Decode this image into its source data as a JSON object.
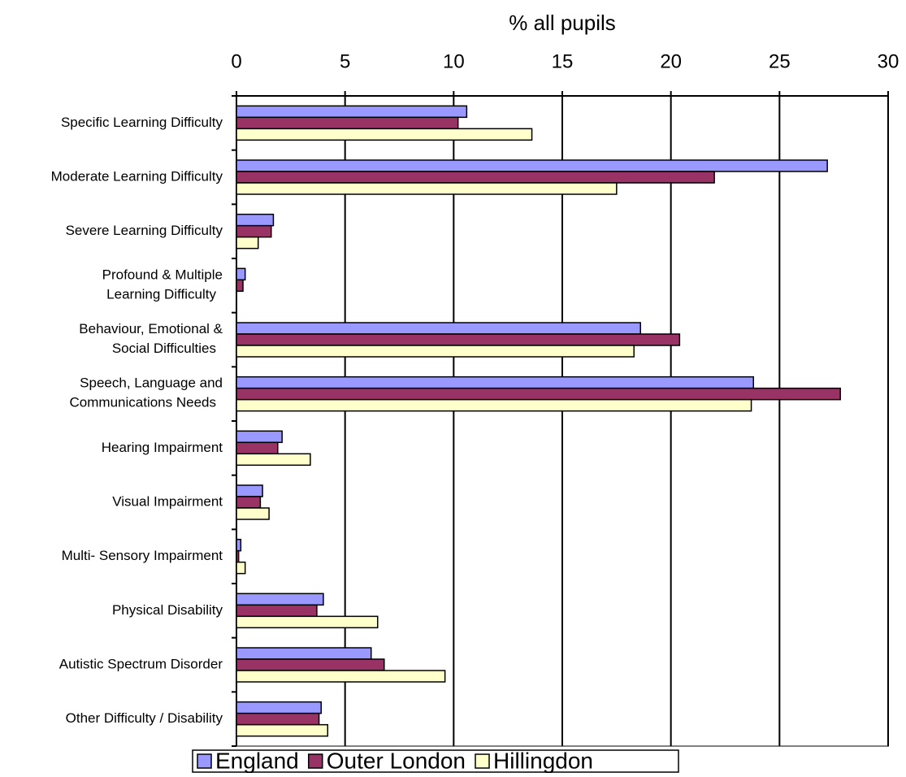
{
  "chart_data": {
    "type": "bar",
    "orientation": "horizontal",
    "x_label": "% all pupils",
    "categories": [
      "Specific Learning Difficulty",
      "Moderate Learning Difficulty",
      "Severe Learning Difficulty",
      "Profound & Multiple\nLearning Difficulty",
      "Behaviour, Emotional &\nSocial Difficulties",
      "Speech, Language and\nCommunications Needs",
      "Hearing Impairment",
      "Visual Impairment",
      "Multi- Sensory Impairment",
      "Physical Disability",
      "Autistic Spectrum Disorder",
      "Other Difficulty / Disability"
    ],
    "series": [
      {
        "name": "England",
        "color": "#9999ff",
        "values": [
          10.6,
          27.2,
          1.7,
          0.4,
          18.6,
          23.8,
          2.1,
          1.2,
          0.2,
          4.0,
          6.2,
          3.9
        ]
      },
      {
        "name": "Outer London",
        "color": "#993366",
        "values": [
          10.2,
          22.0,
          1.6,
          0.3,
          20.4,
          27.8,
          1.9,
          1.1,
          0.1,
          3.7,
          6.8,
          3.8
        ]
      },
      {
        "name": "Hillingdon",
        "color": "#ffffcc",
        "values": [
          13.6,
          17.5,
          1.0,
          0,
          18.3,
          23.7,
          3.4,
          1.5,
          0.4,
          6.5,
          9.6,
          4.2
        ]
      }
    ],
    "xlim": [
      0,
      30
    ],
    "xticks": [
      0,
      5,
      10,
      15,
      20,
      25,
      30
    ],
    "grid": true,
    "legend": "bottom"
  }
}
